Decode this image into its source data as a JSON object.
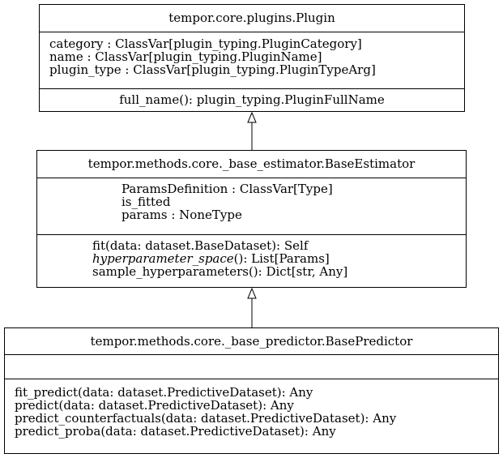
{
  "classes": {
    "plugin": {
      "name": "tempor.core.plugins.Plugin",
      "attributes": [
        "category : ClassVar[plugin_typing.PluginCategory]",
        "name : ClassVar[plugin_typing.PluginName]",
        "plugin_type : ClassVar[plugin_typing.PluginTypeArg]"
      ],
      "methods": [
        "full_name(): plugin_typing.PluginFullName"
      ]
    },
    "estimator": {
      "name": "tempor.methods.core._base_estimator.BaseEstimator",
      "attributes": [
        "ParamsDefinition : ClassVar[Type]",
        "is_fitted",
        "params : NoneType"
      ],
      "methods": [
        "fit(data: dataset.BaseDataset): Self",
        "hyperparameter_space",
        "(): List[Params]",
        "sample_hyperparameters(): Dict[str, Any]"
      ]
    },
    "predictor": {
      "name": "tempor.methods.core._base_predictor.BasePredictor",
      "attributes": [],
      "methods": [
        "fit_predict(data: dataset.PredictiveDataset): Any",
        "predict(data: dataset.PredictiveDataset): Any",
        "predict_counterfactuals(data: dataset.PredictiveDataset): Any",
        "predict_proba(data: dataset.PredictiveDataset): Any"
      ]
    }
  },
  "relations": [
    {
      "type": "inheritance",
      "from": "estimator",
      "to": "plugin"
    },
    {
      "type": "inheritance",
      "from": "predictor",
      "to": "estimator"
    }
  ]
}
